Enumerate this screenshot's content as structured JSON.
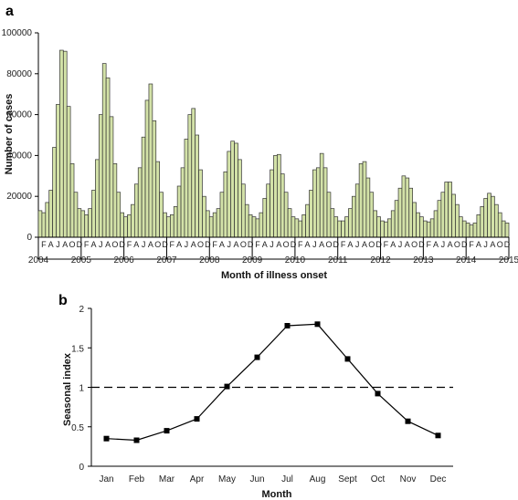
{
  "chart_data": [
    {
      "type": "bar",
      "panel_label": "a",
      "xlabel": "Month of illness onset",
      "ylabel": "Number of cases",
      "ylim": [
        0,
        100000
      ],
      "yticks": [
        "0",
        "20000",
        "40000",
        "60000",
        "80000",
        "100000"
      ],
      "years": [
        "2004",
        "2005",
        "2006",
        "2007",
        "2008",
        "2009",
        "2010",
        "2011",
        "2012",
        "2013",
        "2014",
        "2015"
      ],
      "month_ticks": [
        "F",
        "A",
        "J",
        "A",
        "O",
        "D"
      ],
      "x_start": "2004-01",
      "x_end": "2014-12",
      "values": [
        13000,
        12000,
        17000,
        23000,
        44000,
        65000,
        91500,
        91000,
        64000,
        36000,
        22000,
        14000,
        13000,
        11000,
        14000,
        23000,
        38000,
        60000,
        85000,
        78000,
        59000,
        36000,
        22000,
        12000,
        10000,
        11000,
        16000,
        26000,
        34000,
        49000,
        67000,
        75000,
        57000,
        37000,
        22000,
        12000,
        10000,
        11000,
        15000,
        25000,
        34000,
        48000,
        60000,
        63000,
        50000,
        33000,
        20000,
        13000,
        10000,
        12000,
        14000,
        22000,
        32000,
        42000,
        47000,
        46000,
        38000,
        26000,
        16000,
        11000,
        10000,
        9000,
        12000,
        19000,
        26000,
        33000,
        40000,
        40500,
        31000,
        22000,
        14000,
        10000,
        9000,
        8000,
        11000,
        16000,
        23000,
        33000,
        34000,
        41000,
        34000,
        22000,
        14000,
        10000,
        8000,
        8000,
        10000,
        14000,
        20000,
        26000,
        36000,
        37000,
        29000,
        22000,
        13000,
        10000,
        8000,
        7500,
        9000,
        13000,
        18000,
        24000,
        30000,
        29000,
        24000,
        17000,
        12000,
        10000,
        8000,
        7500,
        9000,
        13000,
        18000,
        22000,
        27000,
        27000,
        21000,
        16000,
        10000,
        8000,
        7000,
        6000,
        7000,
        11000,
        15000,
        19000,
        21500,
        20000,
        16000,
        12000,
        8000,
        7000
      ],
      "bar_color": "#d3e2a8"
    },
    {
      "type": "line",
      "panel_label": "b",
      "xlabel": "Month",
      "ylabel": "Seasonal index",
      "ylim": [
        0,
        2
      ],
      "yticks": [
        "0",
        "0.5",
        "1",
        "1.5",
        "2"
      ],
      "categories": [
        "Jan",
        "Feb",
        "Mar",
        "Apr",
        "May",
        "Jun",
        "Jul",
        "Aug",
        "Sept",
        "Oct",
        "Nov",
        "Dec"
      ],
      "values": [
        0.35,
        0.33,
        0.45,
        0.6,
        1.01,
        1.38,
        1.78,
        1.8,
        1.36,
        0.92,
        0.57,
        0.39
      ],
      "reference_line": 1.0
    }
  ]
}
